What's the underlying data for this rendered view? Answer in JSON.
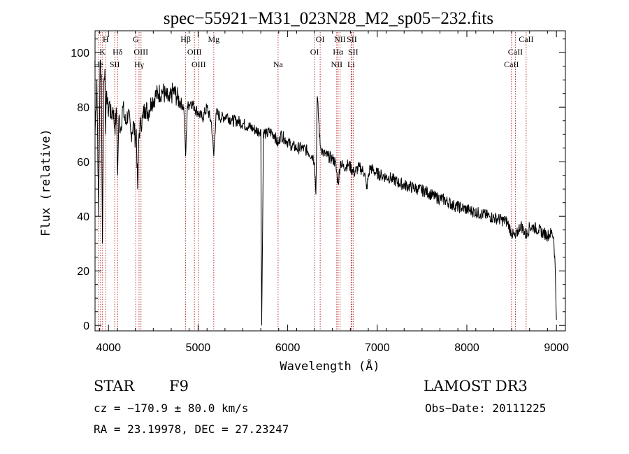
{
  "chart_data": {
    "type": "line",
    "title": "spec−55921−M31_023N28_M2_sp05−232.fits",
    "xlabel": "Wavelength (Å)",
    "ylabel": "Flux (relative)",
    "xlim": [
      3850,
      9100
    ],
    "ylim": [
      -2,
      108
    ],
    "xticks": [
      4000,
      5000,
      6000,
      7000,
      8000,
      9000
    ],
    "yticks": [
      0,
      20,
      40,
      60,
      80,
      100
    ],
    "series": [
      {
        "name": "spectrum",
        "x": [
          3850,
          3870,
          3890,
          3905,
          3920,
          3933,
          3945,
          3960,
          3968,
          3980,
          3995,
          4010,
          4030,
          4050,
          4070,
          4090,
          4102,
          4115,
          4135,
          4160,
          4190,
          4220,
          4250,
          4280,
          4300,
          4310,
          4325,
          4340,
          4360,
          4380,
          4410,
          4440,
          4480,
          4520,
          4560,
          4600,
          4640,
          4680,
          4720,
          4760,
          4800,
          4840,
          4861,
          4880,
          4920,
          4960,
          5000,
          5050,
          5100,
          5150,
          5175,
          5200,
          5260,
          5320,
          5380,
          5440,
          5500,
          5560,
          5620,
          5680,
          5700,
          5710,
          5730,
          5760,
          5800,
          5850,
          5893,
          5920,
          5980,
          6040,
          6100,
          6160,
          6220,
          6280,
          6300,
          6315,
          6330,
          6363,
          6400,
          6450,
          6500,
          6530,
          6563,
          6590,
          6620,
          6680,
          6740,
          6800,
          6860,
          6880,
          6920,
          6980,
          7050,
          7150,
          7250,
          7350,
          7450,
          7550,
          7650,
          7750,
          7850,
          7950,
          8050,
          8150,
          8250,
          8350,
          8450,
          8498,
          8542,
          8600,
          8662,
          8700,
          8750,
          8800,
          8850,
          8900,
          8950,
          8970,
          8985,
          9000
        ],
        "y": [
          70,
          90,
          40,
          96,
          92,
          30,
          88,
          94,
          70,
          86,
          78,
          82,
          76,
          80,
          72,
          78,
          55,
          76,
          72,
          80,
          74,
          78,
          70,
          74,
          68,
          72,
          50,
          70,
          74,
          76,
          80,
          78,
          82,
          84,
          85,
          86,
          84,
          82,
          86,
          84,
          82,
          80,
          62,
          80,
          82,
          80,
          78,
          76,
          80,
          74,
          62,
          78,
          76,
          77,
          75,
          75,
          74,
          73,
          72,
          71,
          72,
          0,
          71,
          70,
          71,
          70,
          66,
          70,
          68,
          66,
          65,
          65,
          64,
          62,
          60,
          48,
          84,
          66,
          63,
          62,
          61,
          60,
          52,
          60,
          58,
          59,
          56,
          58,
          56,
          50,
          58,
          56,
          55,
          54,
          52,
          51,
          50,
          49,
          47,
          46,
          44,
          43,
          42,
          41,
          40,
          39,
          38,
          34,
          32,
          37,
          33,
          36,
          36,
          35,
          34,
          33,
          34,
          32,
          22,
          2
        ]
      }
    ],
    "lines": [
      {
        "label": "H",
        "x": 3970,
        "row": 0
      },
      {
        "label": "K",
        "x": 3934,
        "row": 1
      },
      {
        "label": "Hδ",
        "x": 4102,
        "row": 1
      },
      {
        "label": "He",
        "x": 3889,
        "row": 2
      },
      {
        "label": "I",
        "x": 3912,
        "row": 2
      },
      {
        "label": "SII",
        "x": 4070,
        "row": 2
      },
      {
        "label": "G",
        "x": 4304,
        "row": 0
      },
      {
        "label": "OIII",
        "x": 4363,
        "row": 1
      },
      {
        "label": "Hγ",
        "x": 4341,
        "row": 2
      },
      {
        "label": "Hβ",
        "x": 4861,
        "row": 0
      },
      {
        "label": "OIII",
        "x": 4959,
        "row": 1
      },
      {
        "label": "OIII",
        "x": 5007,
        "row": 2
      },
      {
        "label": "Mg",
        "x": 5175,
        "row": 0
      },
      {
        "label": "Na",
        "x": 5893,
        "row": 2
      },
      {
        "label": "OI",
        "x": 6363,
        "row": 0
      },
      {
        "label": "OI",
        "x": 6300,
        "row": 1
      },
      {
        "label": "NII",
        "x": 6584,
        "row": 0
      },
      {
        "label": "SII",
        "x": 6716,
        "row": 0
      },
      {
        "label": "Hα",
        "x": 6563,
        "row": 1
      },
      {
        "label": "SII",
        "x": 6731,
        "row": 1
      },
      {
        "label": "NII",
        "x": 6548,
        "row": 2
      },
      {
        "label": "Li",
        "x": 6708,
        "row": 2
      },
      {
        "label": "CaII",
        "x": 8662,
        "row": 0
      },
      {
        "label": "CaII",
        "x": 8542,
        "row": 1
      },
      {
        "label": "CaII",
        "x": 8498,
        "row": 2
      }
    ]
  },
  "info": {
    "object_class": "STAR",
    "subclass": "F9",
    "survey": "LAMOST DR3",
    "cz": "cz = −170.9 ± 80.0 km/s",
    "obs_date": "Obs−Date: 20111225",
    "coords": "RA =  23.19978, DEC =  27.23247"
  },
  "colors": {
    "line_marker": "#b22222",
    "spectrum": "#000000",
    "axes": "#000000"
  }
}
